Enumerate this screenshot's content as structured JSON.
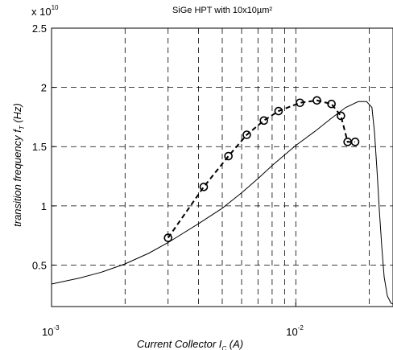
{
  "chart_data": {
    "type": "line",
    "title": "SiGe HPT with 10x10µm²",
    "xlabel": {
      "main": "Current Collector I",
      "sub": "C",
      "tail": " (A)"
    },
    "ylabel": {
      "main": "transition frequency f",
      "sub": "T",
      "tail": " (Hz)"
    },
    "xscale": "log",
    "xlim": [
      0.001,
      0.025
    ],
    "ylim": [
      0.15,
      2.5
    ],
    "y_multiplier": {
      "base": "x 10",
      "exponent": "10"
    },
    "grid": true,
    "x_ticks": [
      {
        "value": 0.001,
        "base": "10",
        "exponent": "-3"
      },
      {
        "value": 0.01,
        "base": "10",
        "exponent": "-2"
      }
    ],
    "x_minor_gridlines": [
      0.002,
      0.003,
      0.004,
      0.005,
      0.006,
      0.007,
      0.008,
      0.009,
      0.02
    ],
    "y_ticks": [
      {
        "value": 0.5,
        "label": "0.5"
      },
      {
        "value": 1,
        "label": "1"
      },
      {
        "value": 1.5,
        "label": "1.5"
      },
      {
        "value": 2,
        "label": "2"
      },
      {
        "value": 2.5,
        "label": "2.5"
      }
    ],
    "series": [
      {
        "style": "solid",
        "color": "#000000",
        "x": [
          0.001,
          0.0013,
          0.0016,
          0.002,
          0.0025,
          0.003,
          0.004,
          0.005,
          0.006,
          0.007,
          0.008,
          0.009,
          0.01,
          0.012,
          0.014,
          0.016,
          0.018,
          0.0195,
          0.0205,
          0.021,
          0.0215,
          0.022,
          0.0225,
          0.023,
          0.0237,
          0.0245,
          0.025
        ],
        "y": [
          0.34,
          0.39,
          0.44,
          0.51,
          0.6,
          0.69,
          0.85,
          0.98,
          1.11,
          1.23,
          1.34,
          1.43,
          1.51,
          1.63,
          1.74,
          1.83,
          1.88,
          1.88,
          1.83,
          1.62,
          1.3,
          0.95,
          0.65,
          0.4,
          0.24,
          0.18,
          0.17
        ]
      },
      {
        "style": "dashed",
        "marker": "circle",
        "color": "#000000",
        "x": [
          0.003,
          0.0042,
          0.0053,
          0.0063,
          0.0074,
          0.0085,
          0.0104,
          0.0122,
          0.014,
          0.0153,
          0.0163,
          0.0175
        ],
        "y": [
          0.73,
          1.16,
          1.42,
          1.6,
          1.72,
          1.8,
          1.87,
          1.89,
          1.86,
          1.76,
          1.54,
          1.54
        ]
      }
    ]
  }
}
